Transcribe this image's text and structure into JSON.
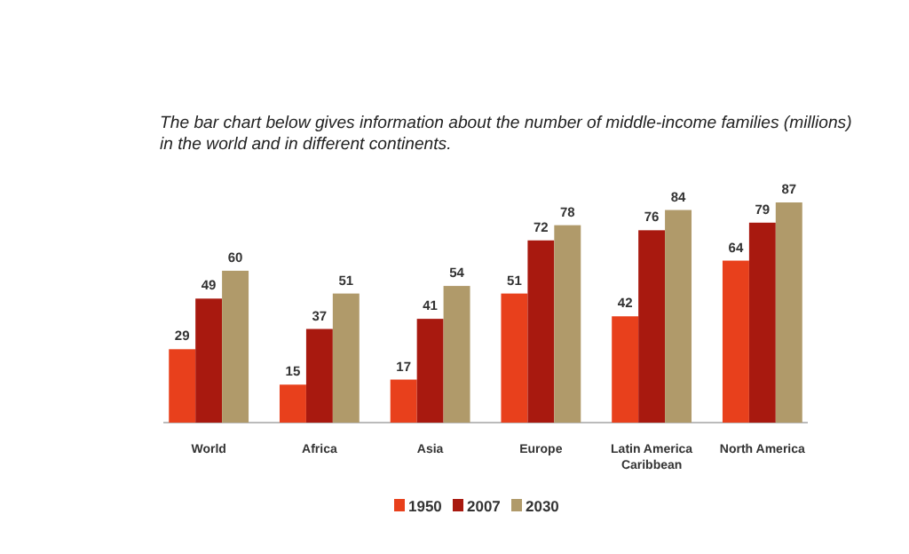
{
  "chart_data": {
    "type": "bar",
    "title": "The bar chart below gives information about the number of middle-income families (millions) in the world and in different continents.",
    "categories": [
      "World",
      "Africa",
      "Asia",
      "Europe",
      "Latin America Caribbean",
      "North America"
    ],
    "series": [
      {
        "name": "1950",
        "color": "#e8401c",
        "values": [
          29,
          15,
          17,
          51,
          42,
          64
        ]
      },
      {
        "name": "2007",
        "color": "#a8190f",
        "values": [
          49,
          37,
          41,
          72,
          76,
          79
        ]
      },
      {
        "name": "2030",
        "color": "#b09a6a",
        "values": [
          60,
          51,
          54,
          78,
          84,
          87
        ]
      }
    ],
    "data_labels": true,
    "legend": "bottom"
  }
}
